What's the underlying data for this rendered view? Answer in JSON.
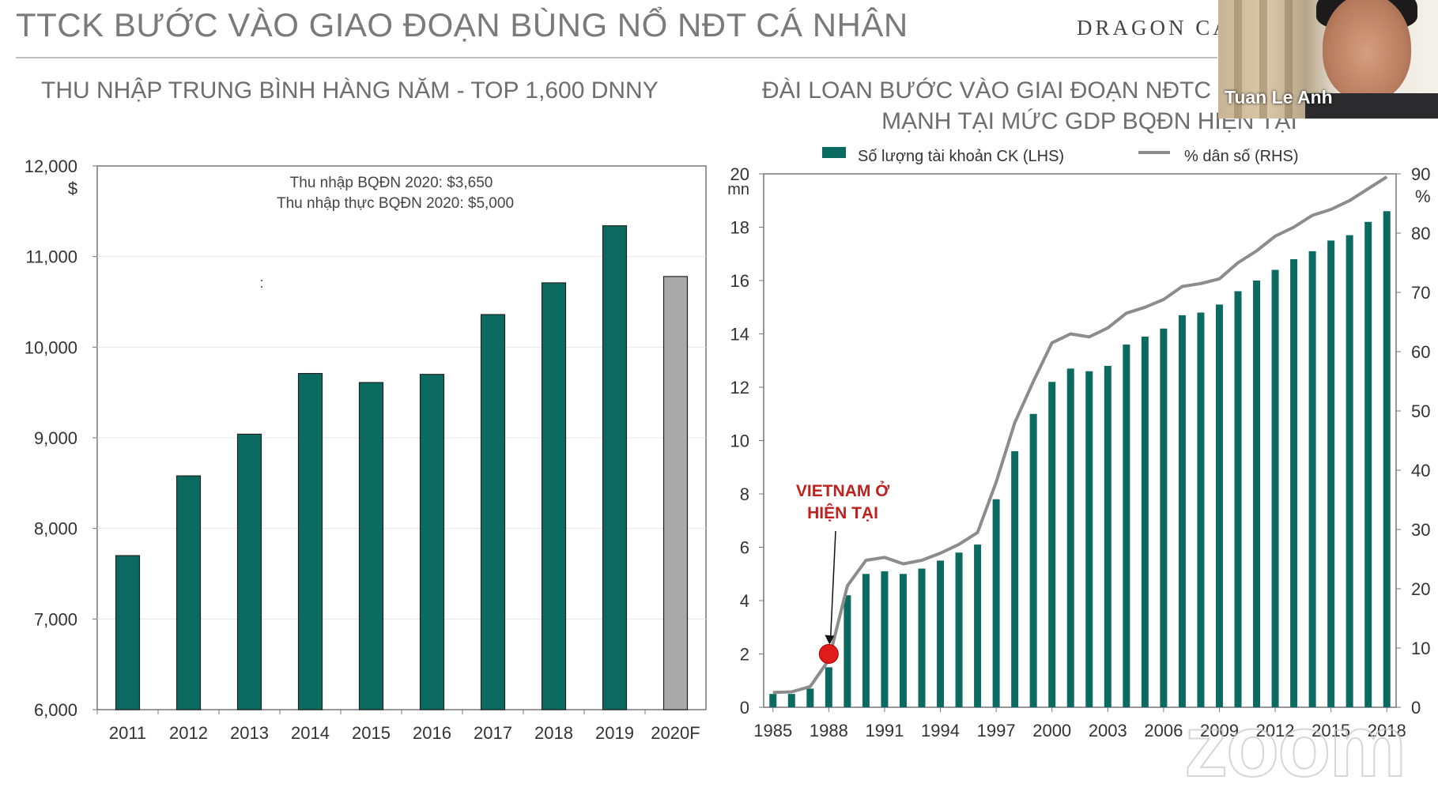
{
  "slide": {
    "title": "TTCK BƯỚC VÀO GIAO ĐOẠN BÙNG NỔ NĐT CÁ NHÂN",
    "brand": "DRAGON CA"
  },
  "webcam": {
    "participant_name": "Tuan Le Anh"
  },
  "watermark": "zoom",
  "colors": {
    "bar": "#0c6b60",
    "forecast_bar": "#a9a9a9",
    "line": "#8c8c8c",
    "marker": "#e01b1b",
    "annotation": "#c0201e"
  },
  "chart_data": [
    {
      "type": "bar",
      "title": "THU NHẬP TRUNG BÌNH HÀNG NĂM - TOP 1,600 DNNY",
      "unit_label": "$",
      "categories": [
        "2011",
        "2012",
        "2013",
        "2014",
        "2015",
        "2016",
        "2017",
        "2018",
        "2019",
        "2020F"
      ],
      "values": [
        7700,
        8580,
        9040,
        9710,
        9610,
        9700,
        10360,
        10710,
        11340,
        10780
      ],
      "forecast_categories": [
        "2020F"
      ],
      "ylim": [
        6000,
        12000
      ],
      "yticks": [
        "6,000",
        "7,000",
        "8,000",
        "9,000",
        "10,000",
        "11,000",
        "12,000"
      ],
      "annotations": [
        "Thu nhập BQĐN 2020: $3,650",
        "Thu nhập thực BQĐN 2020:  $5,000",
        ":"
      ],
      "grid": true
    },
    {
      "type": "bar",
      "title_lines": [
        "ĐÀI LOAN BƯỚC VÀO GIAI ĐOẠN NĐTC",
        "MẠNH TẠI MỨC GDP BQĐN HIỆN TẠI"
      ],
      "legend": [
        {
          "label": "Số lượng tài khoản CK (LHS)",
          "kind": "bar"
        },
        {
          "label": "% dân số (RHS)",
          "kind": "line"
        }
      ],
      "legend_position": "top",
      "x": [
        1985,
        1986,
        1987,
        1988,
        1989,
        1990,
        1991,
        1992,
        1993,
        1994,
        1995,
        1996,
        1997,
        1998,
        1999,
        2000,
        2001,
        2002,
        2003,
        2004,
        2005,
        2006,
        2007,
        2008,
        2009,
        2010,
        2011,
        2012,
        2013,
        2014,
        2015,
        2016,
        2017,
        2018
      ],
      "x_tick_labels": [
        "1985",
        "1988",
        "1991",
        "1994",
        "1997",
        "2000",
        "2003",
        "2006",
        "2009",
        "2012",
        "2015",
        "2018"
      ],
      "series": [
        {
          "name": "Số lượng tài khoản CK (LHS)",
          "axis": "left",
          "values": [
            0.5,
            0.5,
            0.7,
            1.5,
            4.2,
            5.0,
            5.1,
            5.0,
            5.2,
            5.5,
            5.8,
            6.1,
            7.8,
            9.6,
            11.0,
            12.2,
            12.7,
            12.6,
            12.8,
            13.6,
            13.9,
            14.2,
            14.7,
            14.8,
            15.1,
            15.6,
            16.0,
            16.4,
            16.8,
            17.1,
            17.5,
            17.7,
            18.2,
            18.6
          ]
        },
        {
          "name": "% dân số (RHS)",
          "axis": "right",
          "values": [
            2.5,
            2.6,
            3.5,
            8.0,
            20.5,
            24.8,
            25.3,
            24.2,
            24.8,
            26.0,
            27.5,
            29.5,
            38.0,
            48.0,
            55.0,
            61.5,
            63.0,
            62.5,
            64.0,
            66.5,
            67.5,
            68.8,
            71.0,
            71.5,
            72.3,
            75.0,
            77.0,
            79.5,
            81.0,
            83.0,
            84.0,
            85.5,
            87.5,
            89.5
          ]
        }
      ],
      "y_left": {
        "unit": "mn",
        "ylim": [
          0,
          20
        ],
        "ticks": [
          "0",
          "2",
          "4",
          "6",
          "8",
          "10",
          "12",
          "14",
          "16",
          "18",
          "20"
        ]
      },
      "y_right": {
        "unit": "%",
        "ylim": [
          0,
          90
        ],
        "ticks": [
          "0",
          "10",
          "20",
          "30",
          "40",
          "50",
          "60",
          "70",
          "80",
          "90"
        ]
      },
      "callout": {
        "lines": [
          "VIETNAM Ở",
          "HIỆN TẠI"
        ],
        "year": 1988,
        "value_rhs": 9.0
      }
    }
  ]
}
